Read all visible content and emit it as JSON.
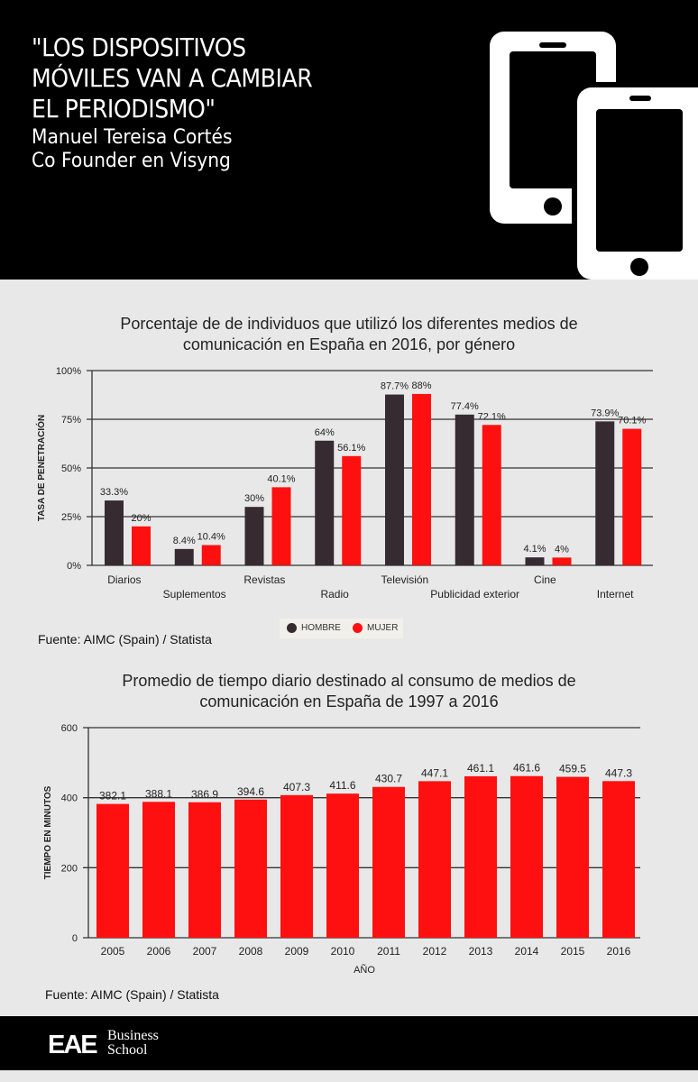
{
  "header": {
    "title_lines": [
      "\"LOS DISPOSITIVOS",
      "MÓVILES VAN A CAMBIAR",
      "EL PERIODISMO\""
    ],
    "author": "Manuel Tereisa Cortés",
    "role": "Co Founder en Visyng",
    "icon": "smartphone-icon"
  },
  "colors": {
    "hombre": "#352b31",
    "mujer": "#ff1010",
    "background": "#e8e8e8",
    "header": "#000000"
  },
  "chart_data": [
    {
      "type": "bar",
      "title_lines": [
        "Porcentaje de de individuos que utilizó los diferentes medios de",
        "comunicación en España en 2016, por género"
      ],
      "ylabel": "TASA DE PENETRACIÓN",
      "xlabel": "",
      "ylim": [
        0,
        100
      ],
      "yticks": [
        "0%",
        "25%",
        "50%",
        "75%",
        "100%"
      ],
      "grid": true,
      "legend": "bottom",
      "categories": [
        "Diarios",
        "Suplementos",
        "Revistas",
        "Radio",
        "Televisión",
        "Publicidad exterior",
        "Cine",
        "Internet"
      ],
      "series": [
        {
          "name": "HOMBRE",
          "values": [
            33.3,
            8.4,
            30,
            64,
            87.7,
            77.4,
            4.1,
            73.9
          ],
          "labels": [
            "33.3%",
            "8.4%",
            "30%",
            "64%",
            "87.7%",
            "77.4%",
            "4.1%",
            "73.9%"
          ]
        },
        {
          "name": "MUJER",
          "values": [
            20,
            10.4,
            40.1,
            56.1,
            88,
            72.1,
            4,
            70.1
          ],
          "labels": [
            "20%",
            "10.4%",
            "40.1%",
            "56.1%",
            "88%",
            "72.1%",
            "4%",
            "70.1%"
          ]
        }
      ],
      "source": "Fuente: AIMC (Spain) / Statista"
    },
    {
      "type": "bar",
      "title_lines": [
        "Promedio de tiempo diario destinado al consumo de medios de",
        "comunicación en España de 1997 a 2016"
      ],
      "ylabel": "TIEMPO EN MINUTOS",
      "xlabel": "AÑO",
      "ylim": [
        0,
        600
      ],
      "yticks": [
        "0",
        "200",
        "400",
        "600"
      ],
      "grid": true,
      "categories": [
        "2005",
        "2006",
        "2007",
        "2008",
        "2009",
        "2010",
        "2011",
        "2012",
        "2013",
        "2014",
        "2015",
        "2016"
      ],
      "values": [
        382.1,
        388.1,
        386.9,
        394.6,
        407.3,
        411.6,
        430.7,
        447.1,
        461.1,
        461.6,
        459.5,
        447.3
      ],
      "source": "Fuente: AIMC (Spain) / Statista"
    }
  ],
  "footer": {
    "logo_mark": "EAE",
    "logo_text": [
      "Business",
      "School"
    ]
  }
}
